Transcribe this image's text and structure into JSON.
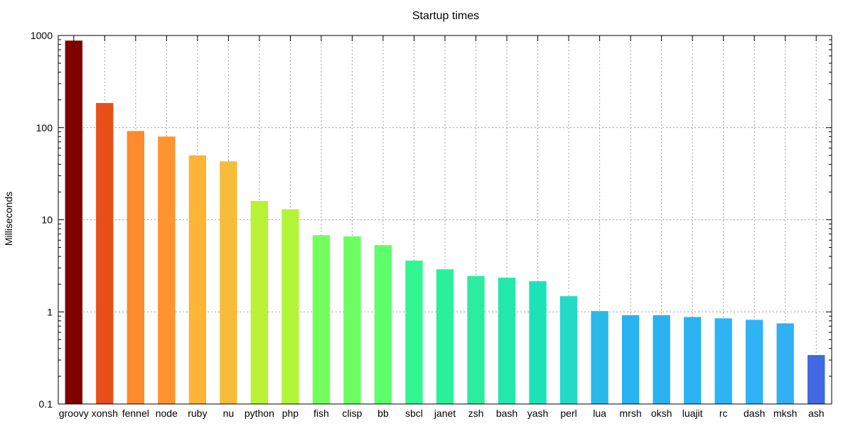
{
  "chart_data": {
    "type": "bar",
    "title": "Startup times",
    "xlabel": "",
    "ylabel": "Milliseconds",
    "yscale": "log",
    "ylim": [
      0.1,
      1000
    ],
    "yticks": [
      {
        "value": 0.1,
        "label": "0.1"
      },
      {
        "value": 1,
        "label": "1"
      },
      {
        "value": 10,
        "label": "10"
      },
      {
        "value": 100,
        "label": "100"
      },
      {
        "value": 1000,
        "label": "1000"
      }
    ],
    "grid": true,
    "legend": "none",
    "categories": [
      "groovy",
      "xonsh",
      "fennel",
      "node",
      "ruby",
      "nu",
      "python",
      "php",
      "fish",
      "clisp",
      "bb",
      "sbcl",
      "janet",
      "zsh",
      "bash",
      "yash",
      "perl",
      "lua",
      "mrsh",
      "oksh",
      "luajit",
      "rc",
      "dash",
      "mksh",
      "ash"
    ],
    "values": [
      880,
      185,
      92,
      80,
      50,
      43,
      16,
      13,
      6.8,
      6.6,
      5.3,
      3.6,
      2.9,
      2.45,
      2.35,
      2.15,
      1.48,
      1.02,
      0.92,
      0.92,
      0.88,
      0.85,
      0.82,
      0.75,
      0.34
    ],
    "colors": [
      "#800000",
      "#e8501a",
      "#fd8a2c",
      "#fe942e",
      "#fdb537",
      "#f6bc3a",
      "#b8f135",
      "#b2f43a",
      "#73ff5c",
      "#6cfd62",
      "#5dff6b",
      "#32f691",
      "#2bf09b",
      "#2beca0",
      "#23e8ac",
      "#1ce2b8",
      "#23dac7",
      "#28b9e8",
      "#2ab1f0",
      "#2ab1f0",
      "#2db2f2",
      "#2eb3f3",
      "#2fb3f4",
      "#32b0f4",
      "#4169e1"
    ]
  }
}
